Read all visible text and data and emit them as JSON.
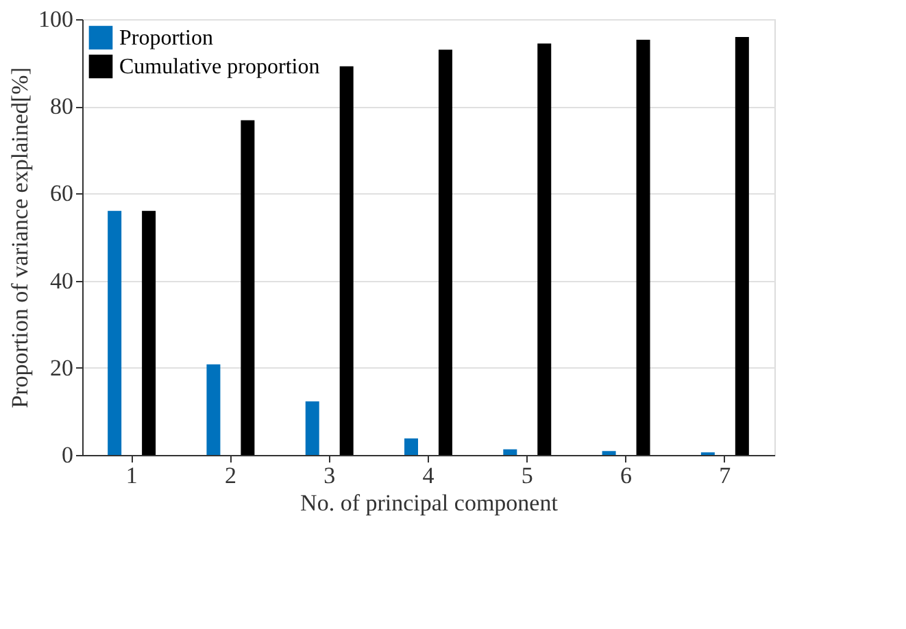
{
  "chart_data": {
    "type": "bar",
    "xlabel": "No. of principal component",
    "ylabel": "Proportion of variance explained[%]",
    "categories": [
      "1",
      "2",
      "3",
      "4",
      "5",
      "6",
      "7"
    ],
    "series": [
      {
        "name": "Proportion",
        "color": "#0072bd",
        "values": [
          56,
          20.8,
          12.3,
          3.8,
          1.3,
          0.9,
          0.6
        ]
      },
      {
        "name": "Cumulative proportion",
        "color": "#000000",
        "values": [
          56,
          76.8,
          89.2,
          93,
          94.4,
          95.3,
          95.9
        ]
      }
    ],
    "ylim": [
      0,
      100
    ],
    "yticks": [
      0,
      20,
      40,
      60,
      80,
      100
    ],
    "grid": "y",
    "legend": "top left"
  }
}
